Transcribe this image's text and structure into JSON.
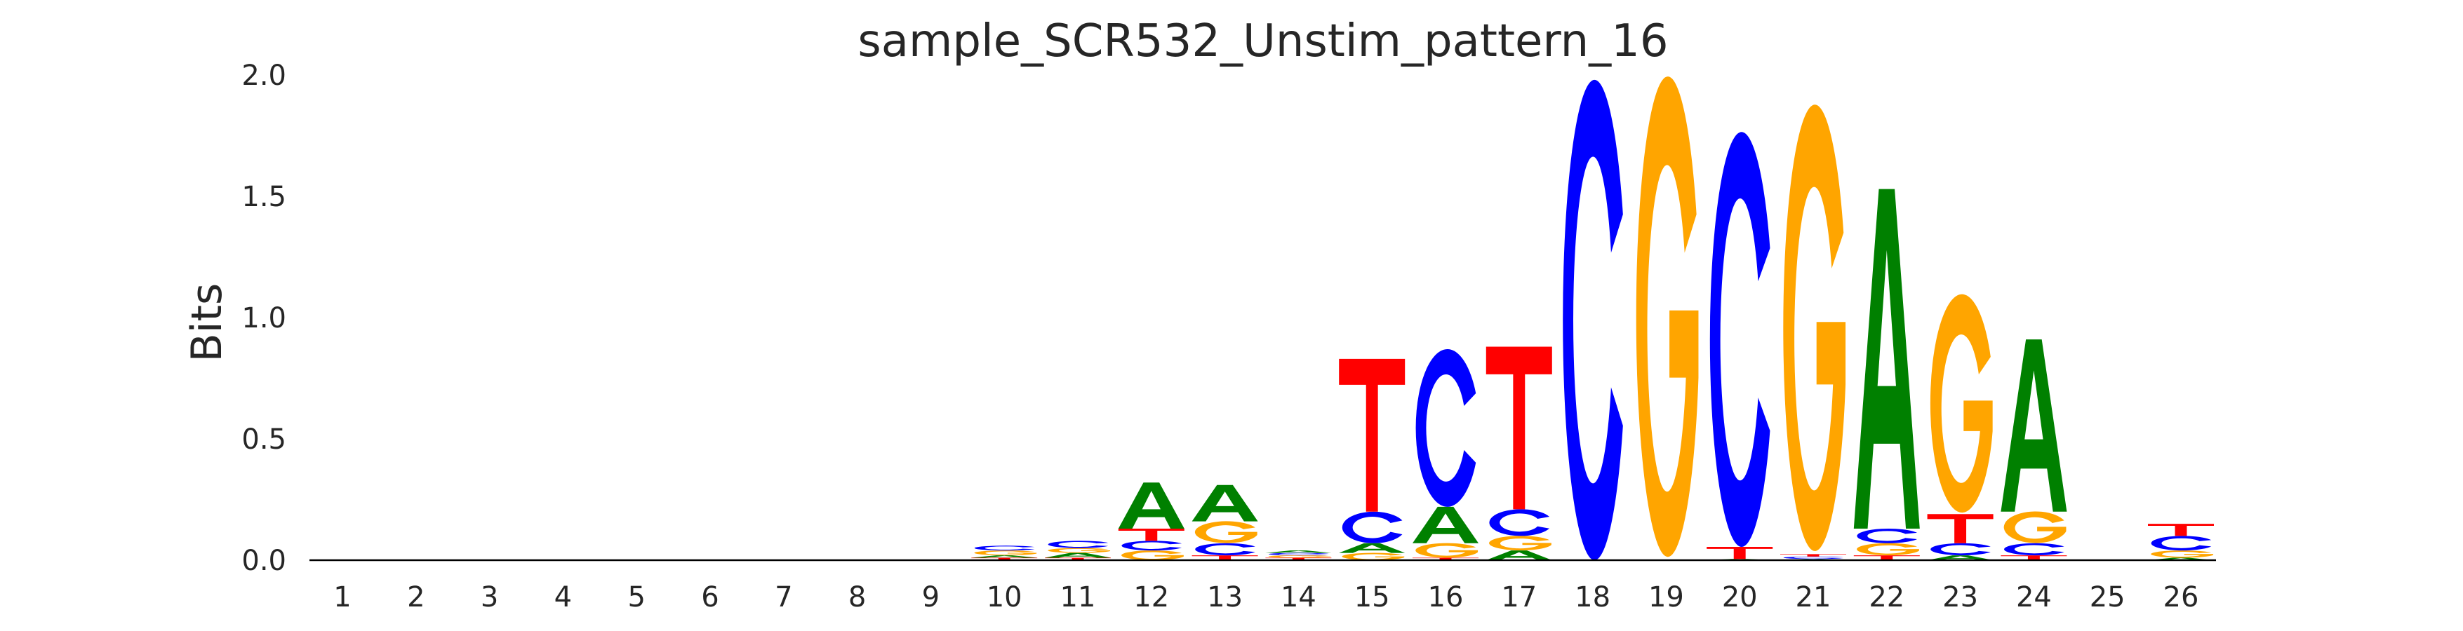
{
  "chart_data": {
    "type": "sequence-logo",
    "title": "sample_SCR532_Unstim_pattern_16",
    "xlabel": "",
    "ylabel": "Bits",
    "ylim": [
      0,
      2.0
    ],
    "yticks": [
      "0.0",
      "0.5",
      "1.0",
      "1.5",
      "2.0"
    ],
    "ytick_values": [
      0,
      0.5,
      1.0,
      1.5,
      2.0
    ],
    "grid": false,
    "colors": {
      "A": "#008000",
      "C": "#0000ff",
      "G": "#ffa500",
      "T": "#ff0000"
    },
    "positions": [
      {
        "pos": "1",
        "stack": []
      },
      {
        "pos": "2",
        "stack": []
      },
      {
        "pos": "3",
        "stack": []
      },
      {
        "pos": "4",
        "stack": []
      },
      {
        "pos": "5",
        "stack": []
      },
      {
        "pos": "6",
        "stack": []
      },
      {
        "pos": "7",
        "stack": []
      },
      {
        "pos": "8",
        "stack": []
      },
      {
        "pos": "9",
        "stack": []
      },
      {
        "pos": "10",
        "stack": [
          [
            "T",
            0.01
          ],
          [
            "A",
            0.01
          ],
          [
            "G",
            0.02
          ],
          [
            "C",
            0.02
          ]
        ]
      },
      {
        "pos": "11",
        "stack": [
          [
            "T",
            0.01
          ],
          [
            "A",
            0.02
          ],
          [
            "G",
            0.02
          ],
          [
            "C",
            0.03
          ]
        ]
      },
      {
        "pos": "12",
        "stack": [
          [
            "G",
            0.04
          ],
          [
            "C",
            0.04
          ],
          [
            "T",
            0.05
          ],
          [
            "A",
            0.19
          ]
        ]
      },
      {
        "pos": "13",
        "stack": [
          [
            "T",
            0.02
          ],
          [
            "C",
            0.05
          ],
          [
            "G",
            0.09
          ],
          [
            "A",
            0.15
          ]
        ]
      },
      {
        "pos": "14",
        "stack": [
          [
            "T",
            0.01
          ],
          [
            "G",
            0.01
          ],
          [
            "C",
            0.01
          ],
          [
            "A",
            0.01
          ]
        ]
      },
      {
        "pos": "15",
        "stack": [
          [
            "G",
            0.03
          ],
          [
            "A",
            0.04
          ],
          [
            "C",
            0.13
          ],
          [
            "T",
            0.63
          ]
        ]
      },
      {
        "pos": "16",
        "stack": [
          [
            "T",
            0.01
          ],
          [
            "G",
            0.06
          ],
          [
            "A",
            0.15
          ],
          [
            "C",
            0.65
          ]
        ]
      },
      {
        "pos": "17",
        "stack": [
          [
            "A",
            0.04
          ],
          [
            "G",
            0.06
          ],
          [
            "C",
            0.11
          ],
          [
            "T",
            0.67
          ]
        ]
      },
      {
        "pos": "18",
        "stack": [
          [
            "C",
            1.98
          ]
        ]
      },
      {
        "pos": "19",
        "stack": [
          [
            "G",
            1.98
          ]
        ]
      },
      {
        "pos": "20",
        "stack": [
          [
            "A",
            0.005
          ],
          [
            "T",
            0.05
          ],
          [
            "C",
            1.71
          ]
        ]
      },
      {
        "pos": "21",
        "stack": [
          [
            "A",
            0.005
          ],
          [
            "C",
            0.01
          ],
          [
            "T",
            0.01
          ],
          [
            "G",
            1.84
          ]
        ]
      },
      {
        "pos": "22",
        "stack": [
          [
            "T",
            0.02
          ],
          [
            "G",
            0.05
          ],
          [
            "C",
            0.06
          ],
          [
            "A",
            1.4
          ]
        ]
      },
      {
        "pos": "23",
        "stack": [
          [
            "A",
            0.02
          ],
          [
            "C",
            0.05
          ],
          [
            "T",
            0.12
          ],
          [
            "G",
            0.9
          ]
        ]
      },
      {
        "pos": "24",
        "stack": [
          [
            "T",
            0.02
          ],
          [
            "C",
            0.05
          ],
          [
            "G",
            0.13
          ],
          [
            "A",
            0.71
          ]
        ]
      },
      {
        "pos": "25",
        "stack": [
          [
            "A",
            0.003
          ]
        ]
      },
      {
        "pos": "26",
        "stack": [
          [
            "A",
            0.01
          ],
          [
            "G",
            0.03
          ],
          [
            "C",
            0.06
          ],
          [
            "T",
            0.05
          ]
        ]
      }
    ]
  }
}
